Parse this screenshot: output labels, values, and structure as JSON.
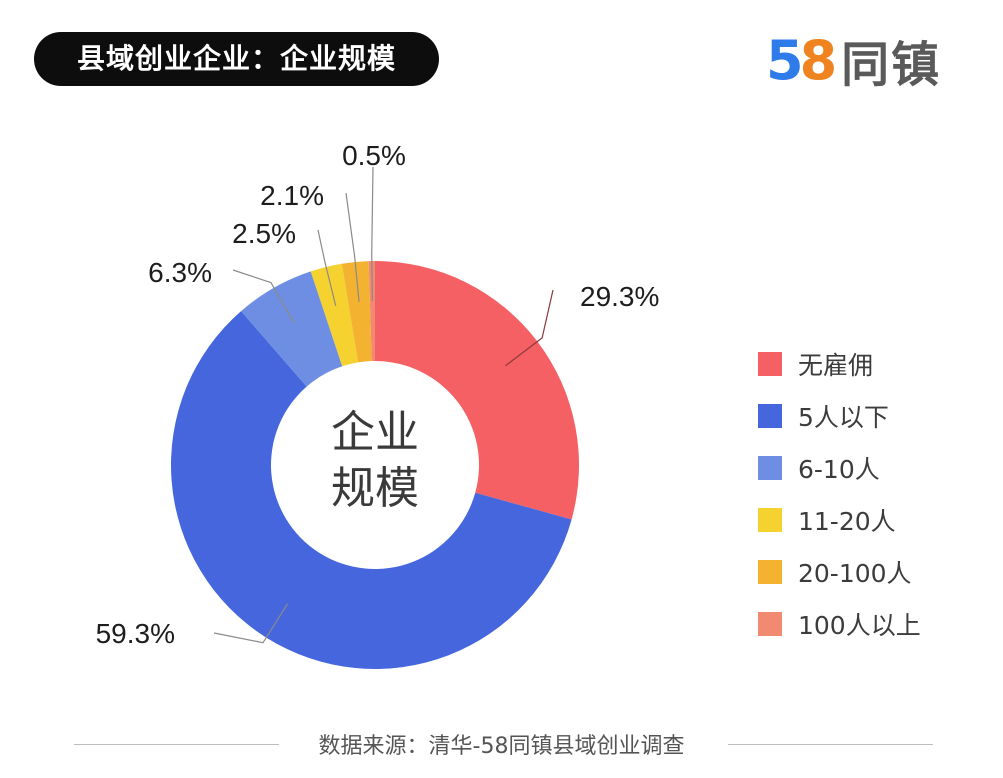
{
  "header": {
    "title": "县域创业企业：企业规模"
  },
  "logo": {
    "number_5": "5",
    "number_8": "8",
    "text": "同镇"
  },
  "colors": {
    "title_bg": "#0d0d0d",
    "logo_5": "#2f7be9",
    "logo_8": "#ef8320"
  },
  "chart_data": {
    "type": "pie",
    "variant": "donut",
    "center_label": [
      "企业",
      "规模"
    ],
    "legend_position": "right",
    "slices": [
      {
        "label": "无雇佣",
        "value": 29.3,
        "display": "29.3%",
        "color": "#f46063"
      },
      {
        "label": "5人以下",
        "value": 59.3,
        "display": "59.3%",
        "color": "#4566dc"
      },
      {
        "label": "6-10人",
        "value": 6.3,
        "display": "6.3%",
        "color": "#6d8ee2"
      },
      {
        "label": "11-20人",
        "value": 2.5,
        "display": "2.5%",
        "color": "#f5d22f"
      },
      {
        "label": "20-100人",
        "value": 2.1,
        "display": "2.1%",
        "color": "#f3b230"
      },
      {
        "label": "100人以上",
        "value": 0.5,
        "display": "0.5%",
        "color": "#f18a70"
      }
    ]
  },
  "footer": {
    "source": "数据来源：清华-58同镇县域创业调查"
  }
}
